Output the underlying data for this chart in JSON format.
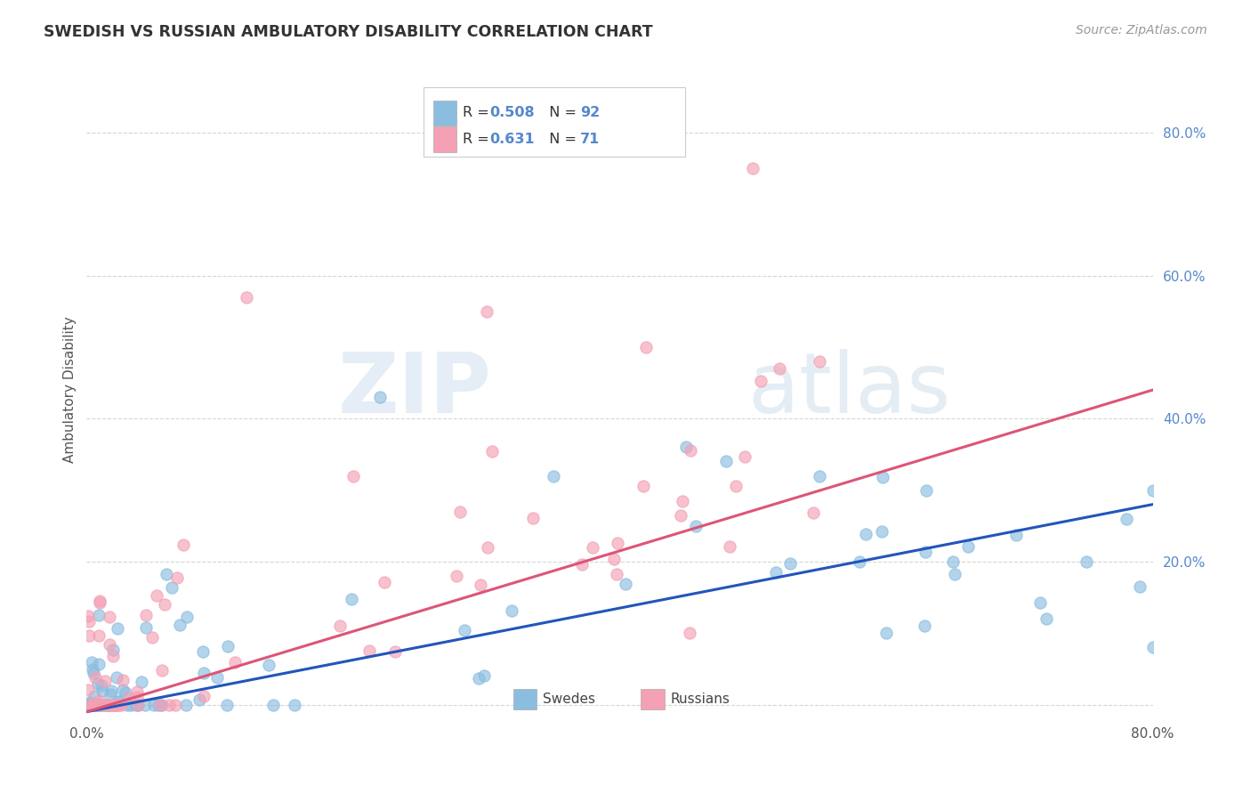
{
  "title": "SWEDISH VS RUSSIAN AMBULATORY DISABILITY CORRELATION CHART",
  "source": "Source: ZipAtlas.com",
  "ylabel": "Ambulatory Disability",
  "xlim": [
    0.0,
    0.8
  ],
  "ylim": [
    -0.02,
    0.9
  ],
  "ytick_vals": [
    0.0,
    0.2,
    0.4,
    0.6,
    0.8
  ],
  "xtick_vals": [
    0.0,
    0.1,
    0.2,
    0.3,
    0.4,
    0.5,
    0.6,
    0.7,
    0.8
  ],
  "swedish_color": "#8bbde0",
  "russian_color": "#f4a0b5",
  "swedish_line_color": "#2255bb",
  "russian_line_color": "#dd5577",
  "tick_color": "#5588cc",
  "swedish_R": 0.508,
  "swedish_N": 92,
  "russian_R": 0.631,
  "russian_N": 71,
  "watermark": "ZIPatlas",
  "background_color": "#ffffff",
  "grid_color": "#cccccc",
  "legend_text_color": "#5588cc",
  "title_color": "#333333",
  "source_color": "#999999",
  "swedish_line_x0": 0.0,
  "swedish_line_x1": 0.8,
  "swedish_line_y0": -0.01,
  "swedish_line_y1": 0.28,
  "russian_line_x0": 0.0,
  "russian_line_x1": 0.8,
  "russian_line_y0": -0.01,
  "russian_line_y1": 0.44
}
